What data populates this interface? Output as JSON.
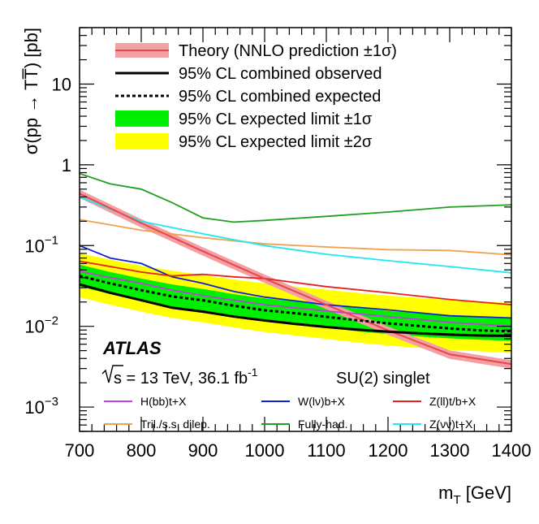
{
  "chart_data": {
    "type": "line",
    "title": "",
    "xlabel": "m",
    "xlabel_sub": "T",
    "xlabel_unit": " [GeV]",
    "ylabel": "σ(pp → TT̅) [pb]",
    "xlim": [
      700,
      1400
    ],
    "ylim": [
      0.0005,
      50
    ],
    "yscale": "log",
    "x_ticks": [
      700,
      800,
      900,
      1000,
      1100,
      1200,
      1300,
      1400
    ],
    "x_tick_labels": [
      "700",
      "800",
      "900",
      "1000",
      "1100",
      "1200",
      "1300",
      "1400"
    ],
    "y_ticks": [
      {
        "value": 10,
        "base": "10",
        "exp": ""
      },
      {
        "value": 1,
        "base": "1",
        "exp": ""
      },
      {
        "value": 0.1,
        "base": "10",
        "exp": "−1"
      },
      {
        "value": 0.01,
        "base": "10",
        "exp": "−2"
      },
      {
        "value": 0.001,
        "base": "10",
        "exp": "−3"
      }
    ],
    "x": [
      700,
      750,
      800,
      850,
      900,
      950,
      1000,
      1050,
      1100,
      1150,
      1200,
      1250,
      1300,
      1350,
      1400
    ],
    "theory": {
      "name": "Theory (NNLO prediction ±1σ)",
      "color": "#e8474c",
      "band_color": "#f2a0a4",
      "x": [
        700,
        800,
        900,
        1000,
        1100,
        1200,
        1300,
        1400
      ],
      "values": [
        0.44,
        0.19,
        0.085,
        0.039,
        0.0185,
        0.0089,
        0.0045,
        0.0034
      ],
      "rel_err": 0.12
    },
    "observed": {
      "name": "95% CL combined observed",
      "color": "#000000",
      "values": [
        0.033,
        0.026,
        0.021,
        0.017,
        0.0152,
        0.0132,
        0.0118,
        0.0107,
        0.0098,
        0.0091,
        0.0086,
        0.0082,
        0.0079,
        0.0077,
        0.0076
      ]
    },
    "expected": {
      "name": "95% CL combined expected",
      "color": "#000000",
      "values": [
        0.042,
        0.034,
        0.028,
        0.0235,
        0.021,
        0.018,
        0.0158,
        0.0145,
        0.0131,
        0.0119,
        0.0109,
        0.0101,
        0.0094,
        0.0089,
        0.0087
      ]
    },
    "band_1sigma": {
      "name": "95% CL expected limit ±1σ",
      "color": "#00ee00",
      "lower": [
        0.031,
        0.025,
        0.0205,
        0.0172,
        0.0152,
        0.013,
        0.0115,
        0.0106,
        0.0096,
        0.0087,
        0.008,
        0.0075,
        0.0071,
        0.0068,
        0.0066
      ],
      "upper": [
        0.058,
        0.047,
        0.039,
        0.033,
        0.029,
        0.025,
        0.0222,
        0.0202,
        0.0185,
        0.0168,
        0.0155,
        0.0145,
        0.0137,
        0.013,
        0.0125
      ]
    },
    "band_2sigma": {
      "name": "95% CL expected limit ±2σ",
      "color": "#ffff00",
      "lower": [
        0.023,
        0.0185,
        0.0152,
        0.0127,
        0.0112,
        0.0097,
        0.0085,
        0.0077,
        0.007,
        0.0063,
        0.0058,
        0.0054,
        0.0051,
        0.0049,
        0.0047
      ],
      "upper": [
        0.08,
        0.067,
        0.056,
        0.049,
        0.043,
        0.038,
        0.034,
        0.031,
        0.0285,
        0.026,
        0.024,
        0.0225,
        0.0212,
        0.0202,
        0.0195
      ]
    },
    "channels": [
      {
        "name": "H(bb)t+X",
        "color": "#c040e0",
        "x": [
          700,
          750,
          800,
          850,
          900,
          950,
          1000,
          1100,
          1200,
          1300,
          1400
        ],
        "values": [
          0.048,
          0.04,
          0.034,
          0.028,
          0.024,
          0.021,
          0.0185,
          0.0155,
          0.0132,
          0.0112,
          0.01
        ]
      },
      {
        "name": "W(lν)b+X",
        "color": "#1020d0",
        "x": [
          700,
          750,
          800,
          850,
          900,
          950,
          1000,
          1100,
          1200,
          1300,
          1400
        ],
        "values": [
          0.1,
          0.07,
          0.06,
          0.041,
          0.034,
          0.027,
          0.023,
          0.0185,
          0.016,
          0.0135,
          0.0127
        ]
      },
      {
        "name": "Z(ll)t/b+X",
        "color": "#e82020",
        "x": [
          700,
          750,
          800,
          850,
          900,
          950,
          1000,
          1100,
          1200,
          1300,
          1400
        ],
        "values": [
          0.064,
          0.055,
          0.047,
          0.042,
          0.044,
          0.041,
          0.039,
          0.031,
          0.026,
          0.0215,
          0.0185
        ]
      },
      {
        "name": "Tril./s.s. dilep.",
        "color": "#f0a050",
        "x": [
          700,
          800,
          900,
          1000,
          1100,
          1200,
          1300,
          1400
        ],
        "values": [
          0.21,
          0.155,
          0.125,
          0.105,
          0.096,
          0.089,
          0.087,
          0.077
        ]
      },
      {
        "name": "Fully-had.",
        "color": "#20a020",
        "x": [
          700,
          750,
          800,
          850,
          900,
          950,
          1000,
          1100,
          1200,
          1300,
          1400
        ],
        "values": [
          0.78,
          0.58,
          0.5,
          0.34,
          0.22,
          0.195,
          0.205,
          0.23,
          0.26,
          0.3,
          0.32
        ]
      },
      {
        "name": "Z(νν)t+X",
        "color": "#20e8f0",
        "x": [
          700,
          800,
          900,
          1000,
          1100,
          1200,
          1300,
          1400
        ],
        "values": [
          0.4,
          0.2,
          0.14,
          0.1,
          0.078,
          0.065,
          0.055,
          0.046
        ]
      }
    ],
    "annotations": {
      "experiment": "ATLAS",
      "sqrt_s": "s",
      "energy_text": " = 13 TeV, 36.1 fb",
      "lumi_exp": "-1",
      "model": "SU(2) singlet"
    },
    "legend_position": "top"
  }
}
